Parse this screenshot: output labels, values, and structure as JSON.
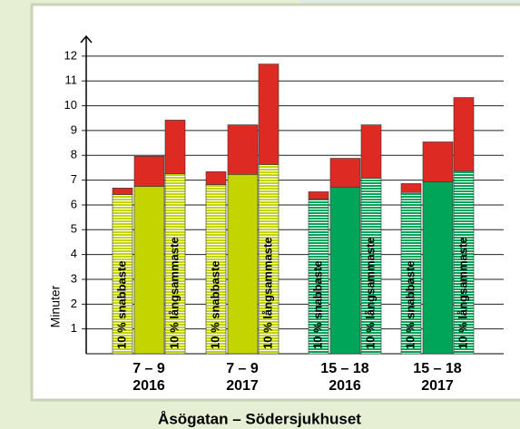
{
  "chart_data": {
    "type": "stacked_bar",
    "title": "Åsögatan – Södersjukhuset",
    "ylabel": "Minuter",
    "categories": [
      "7 – 9",
      "7 – 9",
      "15 – 18",
      "15 – 18"
    ],
    "years": [
      "2016",
      "2017",
      "2016",
      "2017"
    ],
    "group_colors": [
      "#c3d400",
      "#c3d400",
      "#00a55a",
      "#00a55a"
    ],
    "top_color": "#dd2a22",
    "series": [
      {
        "name": "10 % snabbaste",
        "striped": true,
        "base": [
          6.42,
          6.82,
          6.24,
          6.5
        ],
        "extra": [
          0.26,
          0.52,
          0.29,
          0.36
        ]
      },
      {
        "name": null,
        "striped": false,
        "base": [
          6.75,
          7.23,
          6.72,
          6.93
        ],
        "extra": [
          1.21,
          2.0,
          1.16,
          1.61
        ]
      },
      {
        "name": "10 % långsammaste",
        "striped": true,
        "base": [
          7.26,
          7.63,
          7.08,
          7.37
        ],
        "extra": [
          2.16,
          4.05,
          2.15,
          2.96
        ]
      }
    ],
    "ylim": [
      0,
      12.8
    ],
    "yticks": [
      1,
      2,
      3,
      4,
      5,
      6,
      7,
      8,
      9,
      10,
      11,
      12
    ],
    "grid": true
  }
}
